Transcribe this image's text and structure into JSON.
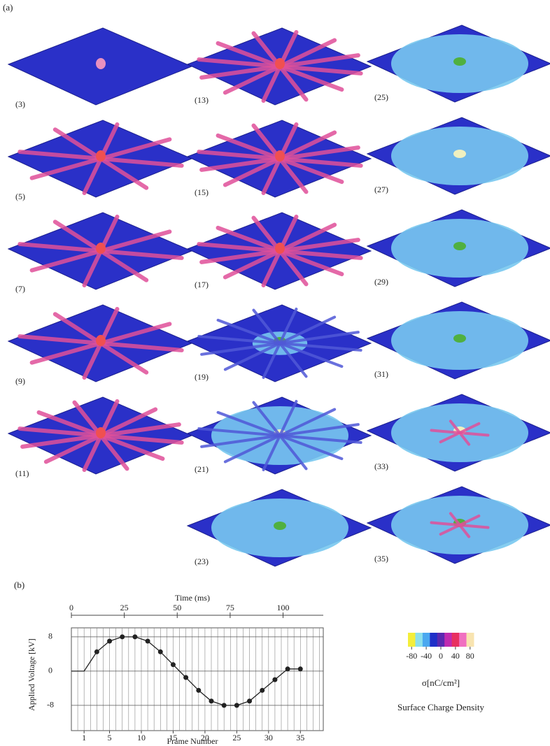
{
  "panel_a": {
    "label": "(a)",
    "frames": [
      "(3)",
      "(5)",
      "(7)",
      "(9)",
      "(11)",
      "(13)",
      "(15)",
      "(17)",
      "(19)",
      "(21)",
      "(23)",
      "(25)",
      "(27)",
      "(29)",
      "(31)",
      "(33)",
      "(35)"
    ]
  },
  "panel_b_label": "(b)",
  "chart_data": {
    "type": "line",
    "xlabel": "Frame Number",
    "ylabel": "Applied Voltage [kV]",
    "x2label": "Time (ms)",
    "x": [
      -1,
      1,
      3,
      5,
      7,
      9,
      11,
      13,
      15,
      17,
      19,
      21,
      23,
      25,
      27,
      29,
      31,
      33,
      35
    ],
    "series": [
      {
        "color": "#222222",
        "values": [
          0,
          0,
          4.5,
          7,
          8,
          8,
          7,
          4.5,
          1.5,
          -1.5,
          -4.5,
          -7,
          -8,
          -8,
          -7,
          -4.5,
          -2,
          0.5,
          0.5
        ]
      }
    ],
    "xlim": [
      -1,
      38.6
    ],
    "xticks": [
      1,
      5,
      10,
      15,
      20,
      25,
      30,
      35
    ],
    "x_minor_ticks": [
      0,
      1,
      2,
      3,
      4,
      5,
      6,
      7,
      8,
      9,
      10,
      11,
      12,
      13,
      14,
      15,
      16,
      17,
      18,
      19,
      20,
      21,
      22,
      23,
      24,
      25,
      26,
      27,
      28,
      29,
      30,
      31,
      32,
      33,
      34,
      35,
      36,
      37,
      38
    ],
    "x2lim": [
      0,
      119
    ],
    "x2ticks": [
      0,
      25,
      50,
      75,
      100
    ],
    "ylim": [
      -13.9,
      10.1
    ],
    "yticks": [
      -8,
      0,
      8
    ],
    "grid": true
  },
  "colorbar": {
    "ticks": [
      -80,
      -40,
      0,
      40,
      80
    ],
    "lim": [
      -90,
      90
    ],
    "colors": [
      "#f4ee3a",
      "#8ce0ec",
      "#4aa8f0",
      "#1f2fc8",
      "#5a28b0",
      "#c02ab0",
      "#e83060",
      "#f070c0",
      "#f8e4b0"
    ],
    "unit": "σ[nC/cm²]",
    "label": "Surface Charge Density"
  }
}
